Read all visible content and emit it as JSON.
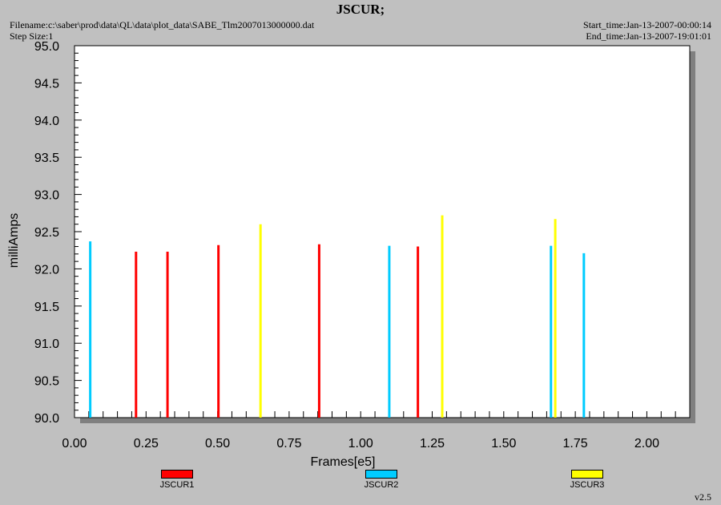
{
  "header": {
    "title": "JSCUR;",
    "filename": "Filename:c:\\saber\\prod\\data\\QL\\data\\plot_data\\SABE_Tlm2007013000000.dat",
    "step_size": "Step Size:1",
    "start_time": "Start_time:Jan-13-2007-00:00:14",
    "end_time": "End_time:Jan-13-2007-19:01:01"
  },
  "footer": {
    "version": "v2.5"
  },
  "chart_data": {
    "type": "bar",
    "title": "JSCUR;",
    "xlabel": "Frames[e5]",
    "ylabel": "milliAmps",
    "xlim": [
      0.0,
      2.15
    ],
    "ylim": [
      90.0,
      95.0
    ],
    "x_ticks": [
      "0.00",
      "0.25",
      "0.50",
      "0.75",
      "1.00",
      "1.25",
      "1.50",
      "1.75",
      "2.00"
    ],
    "y_ticks": [
      "90.0",
      "90.5",
      "91.0",
      "91.5",
      "92.0",
      "92.5",
      "93.0",
      "93.5",
      "94.0",
      "94.5",
      "95.0"
    ],
    "grid": false,
    "legend_position": "bottom",
    "series": [
      {
        "name": "JSCUR1",
        "color": "#ff0000",
        "points": [
          [
            0.215,
            92.23
          ],
          [
            0.325,
            92.23
          ],
          [
            0.503,
            92.32
          ],
          [
            0.855,
            92.33
          ],
          [
            1.2,
            92.3
          ]
        ]
      },
      {
        "name": "JSCUR2",
        "color": "#00ccff",
        "points": [
          [
            0.055,
            92.37
          ],
          [
            1.1,
            92.31
          ],
          [
            1.665,
            92.31
          ],
          [
            1.78,
            92.21
          ]
        ]
      },
      {
        "name": "JSCUR3",
        "color": "#ffff00",
        "points": [
          [
            0.65,
            92.6
          ],
          [
            1.285,
            92.72
          ],
          [
            1.68,
            92.67
          ]
        ]
      }
    ]
  }
}
